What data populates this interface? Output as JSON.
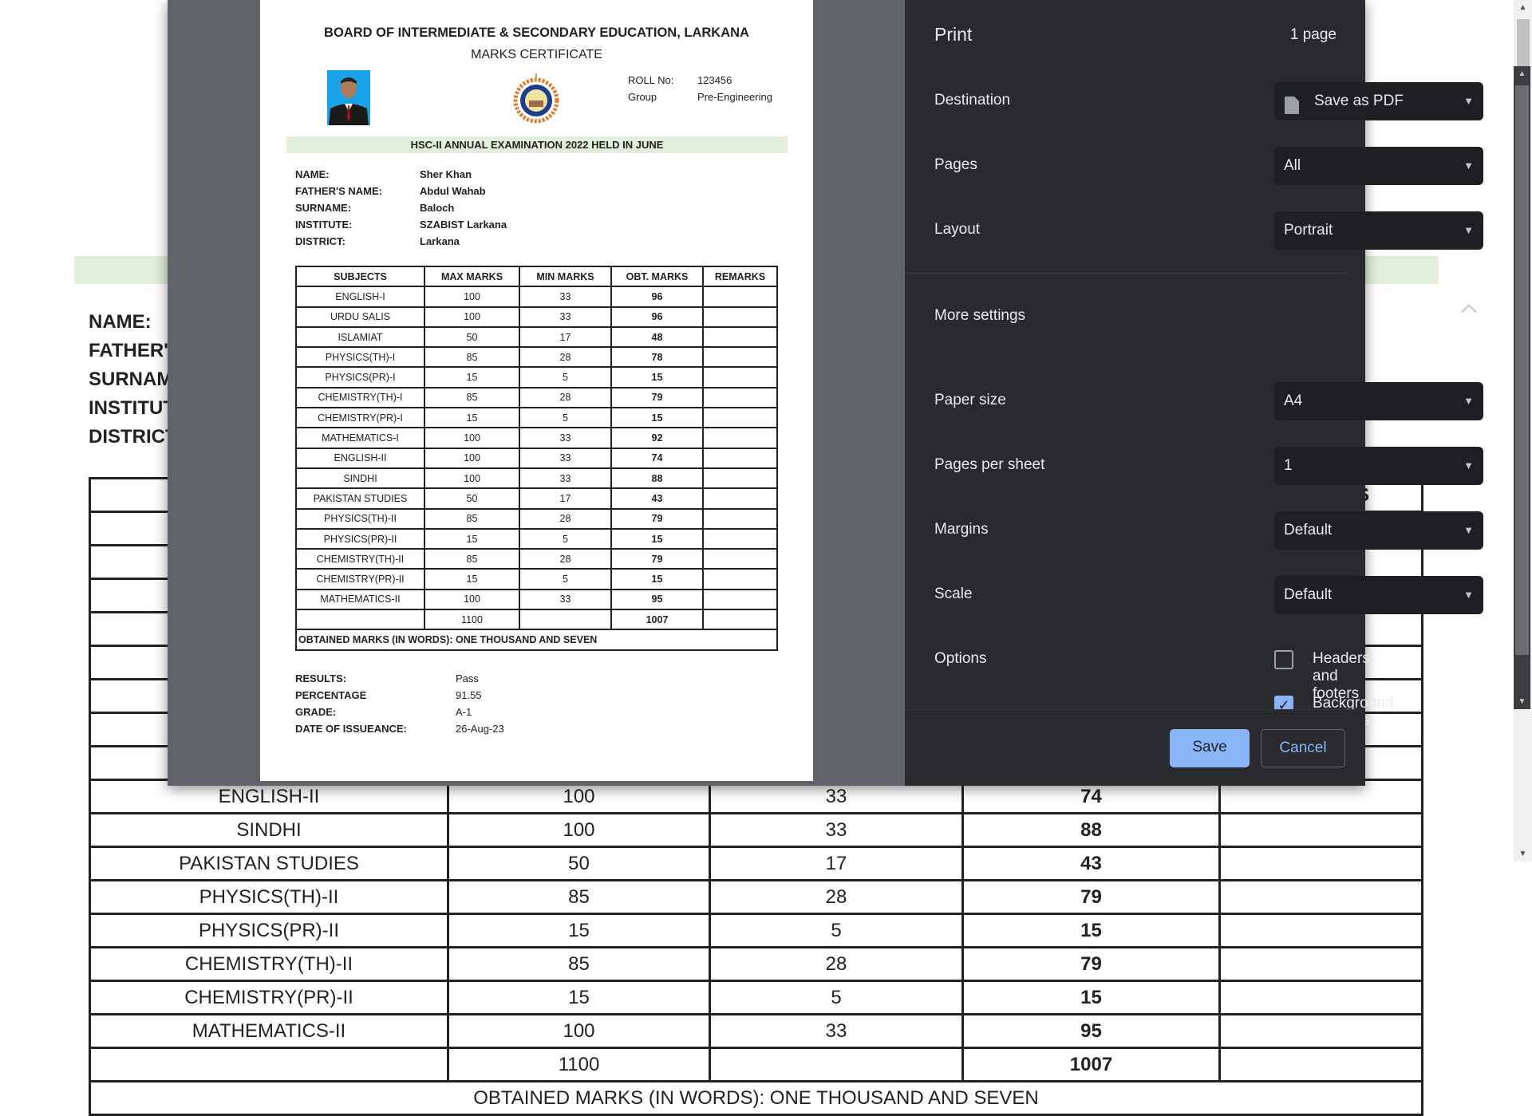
{
  "certificate": {
    "board": "BOARD OF INTERMEDIATE & SECONDARY EDUCATION, LARKANA",
    "title": "MARKS CERTIFICATE",
    "roll_label": "ROLL No:",
    "roll_value": "123456",
    "group_label": "Group",
    "group_value": "Pre-Engineering",
    "exam": "HSC-II ANNUAL EXAMINATION 2022 HELD IN JUNE",
    "info": [
      {
        "label": "NAME:",
        "value": "Sher Khan"
      },
      {
        "label": "FATHER'S NAME:",
        "value": "Abdul Wahab"
      },
      {
        "label": "SURNAME:",
        "value": "Baloch"
      },
      {
        "label": "INSTITUTE:",
        "value": "SZABIST Larkana"
      },
      {
        "label": "DISTRICT:",
        "value": "Larkana"
      }
    ],
    "headers": [
      "SUBJECTS",
      "MAX MARKS",
      "MIN MARKS",
      "OBT. MARKS",
      "REMARKS"
    ],
    "rows": [
      [
        "ENGLISH-I",
        "100",
        "33",
        "96"
      ],
      [
        "URDU SALIS",
        "100",
        "33",
        "96"
      ],
      [
        "ISLAMIAT",
        "50",
        "17",
        "48"
      ],
      [
        "PHYSICS(TH)-I",
        "85",
        "28",
        "78"
      ],
      [
        "PHYSICS(PR)-I",
        "15",
        "5",
        "15"
      ],
      [
        "CHEMISTRY(TH)-I",
        "85",
        "28",
        "79"
      ],
      [
        "CHEMISTRY(PR)-I",
        "15",
        "5",
        "15"
      ],
      [
        "MATHEMATICS-I",
        "100",
        "33",
        "92"
      ],
      [
        "ENGLISH-II",
        "100",
        "33",
        "74"
      ],
      [
        "SINDHI",
        "100",
        "33",
        "88"
      ],
      [
        "PAKISTAN STUDIES",
        "50",
        "17",
        "43"
      ],
      [
        "PHYSICS(TH)-II",
        "85",
        "28",
        "79"
      ],
      [
        "PHYSICS(PR)-II",
        "15",
        "5",
        "15"
      ],
      [
        "CHEMISTRY(TH)-II",
        "85",
        "28",
        "79"
      ],
      [
        "CHEMISTRY(PR)-II",
        "15",
        "5",
        "15"
      ],
      [
        "MATHEMATICS-II",
        "100",
        "33",
        "95"
      ]
    ],
    "total_max": "1100",
    "total_obt": "1007",
    "in_words": "OBTAINED MARKS (IN WORDS): ONE THOUSAND AND SEVEN",
    "results": [
      {
        "label": "RESULTS:",
        "value": "Pass"
      },
      {
        "label": "PERCENTAGE",
        "value": "91.55"
      },
      {
        "label": "GRADE:",
        "value": "A-1"
      },
      {
        "label": "DATE OF ISSUEANCE:",
        "value": "26-Aug-23"
      }
    ]
  },
  "background": {
    "labels": [
      "NAME:",
      "FATHER'S",
      "SURNAM",
      "INSTITUT",
      "DISTRICT"
    ]
  },
  "print": {
    "title": "Print",
    "page_count": "1 page",
    "destination": {
      "label": "Destination",
      "value": "Save as PDF"
    },
    "pages": {
      "label": "Pages",
      "value": "All"
    },
    "layout": {
      "label": "Layout",
      "value": "Portrait"
    },
    "more_settings": "More settings",
    "paper_size": {
      "label": "Paper size",
      "value": "A4"
    },
    "pages_per_sheet": {
      "label": "Pages per sheet",
      "value": "1"
    },
    "margins": {
      "label": "Margins",
      "value": "Default"
    },
    "scale": {
      "label": "Scale",
      "value": "Default"
    },
    "options_label": "Options",
    "headers_footers": {
      "label": "Headers and footers",
      "checked": false
    },
    "background_graphics": {
      "label": "Background graphics",
      "checked": true
    },
    "save": "Save",
    "cancel": "Cancel",
    "accent": "#8ab4f8"
  }
}
